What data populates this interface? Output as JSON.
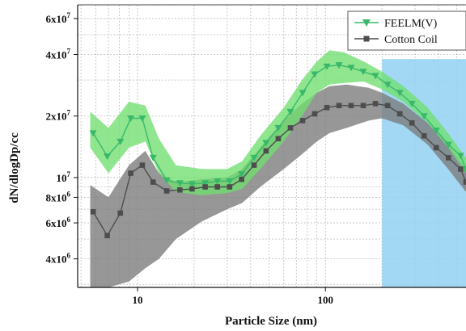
{
  "chart_data": {
    "type": "line",
    "xlabel": "Particle Size (nm)",
    "ylabel": "dN/dlogDp/cc",
    "xscale": "log",
    "yscale": "log",
    "xlim": [
      4.8,
      560
    ],
    "ylim": [
      2900000,
      70000000
    ],
    "x_ticks": [
      {
        "value": 10,
        "label": "10"
      },
      {
        "value": 100,
        "label": "100"
      }
    ],
    "y_ticks": [
      {
        "value": 4000000,
        "mantissa": "4x10",
        "exp": "6"
      },
      {
        "value": 6000000,
        "mantissa": "6x10",
        "exp": "6"
      },
      {
        "value": 8000000,
        "mantissa": "8x10",
        "exp": "6"
      },
      {
        "value": 10000000,
        "mantissa": "10",
        "exp": "7"
      },
      {
        "value": 20000000,
        "mantissa": "2x10",
        "exp": "7"
      },
      {
        "value": 40000000,
        "mantissa": "4x10",
        "exp": "7"
      },
      {
        "value": 60000000,
        "mantissa": "6x10",
        "exp": "7"
      }
    ],
    "grid": true,
    "legend_position": "top-right",
    "highlight_region": {
      "x_start": 200,
      "x_end": 560,
      "y_top": 38000000,
      "color": "#93d1f3"
    },
    "series": [
      {
        "name": "FEELM(V)",
        "color": "#39b86a",
        "band_color": "#6fdf6f",
        "marker": "triangle-down",
        "points": [
          {
            "x": 5.8,
            "y": 16500000
          },
          {
            "x": 6.9,
            "y": 12700000
          },
          {
            "x": 8.1,
            "y": 15000000
          },
          {
            "x": 9.2,
            "y": 19500000
          },
          {
            "x": 10.6,
            "y": 19500000
          },
          {
            "x": 12.1,
            "y": 12500000
          },
          {
            "x": 14.3,
            "y": 9700000
          },
          {
            "x": 16.8,
            "y": 9400000
          },
          {
            "x": 19.5,
            "y": 9300000
          },
          {
            "x": 22.9,
            "y": 9400000
          },
          {
            "x": 26.6,
            "y": 9600000
          },
          {
            "x": 30.9,
            "y": 9600000
          },
          {
            "x": 35.8,
            "y": 10400000
          },
          {
            "x": 41.7,
            "y": 12500000
          },
          {
            "x": 48.3,
            "y": 14800000
          },
          {
            "x": 56.1,
            "y": 17500000
          },
          {
            "x": 65.1,
            "y": 21000000
          },
          {
            "x": 75.6,
            "y": 26000000
          },
          {
            "x": 87.7,
            "y": 32000000
          },
          {
            "x": 101.8,
            "y": 35000000
          },
          {
            "x": 118.1,
            "y": 35500000
          },
          {
            "x": 137.0,
            "y": 34500000
          },
          {
            "x": 159.0,
            "y": 33000000
          },
          {
            "x": 184.6,
            "y": 31500000
          },
          {
            "x": 214.3,
            "y": 28500000
          },
          {
            "x": 248.8,
            "y": 26000000
          },
          {
            "x": 288.8,
            "y": 23000000
          },
          {
            "x": 335.2,
            "y": 20000000
          },
          {
            "x": 389.1,
            "y": 17000000
          },
          {
            "x": 451.6,
            "y": 14500000
          },
          {
            "x": 524.0,
            "y": 12800000
          },
          {
            "x": 560.0,
            "y": 11000000
          }
        ],
        "band_upper": [
          {
            "x": 5.6,
            "y": 21000000
          },
          {
            "x": 7.0,
            "y": 17500000
          },
          {
            "x": 9.0,
            "y": 23500000
          },
          {
            "x": 11.0,
            "y": 22500000
          },
          {
            "x": 13.0,
            "y": 15500000
          },
          {
            "x": 16.0,
            "y": 11500000
          },
          {
            "x": 22.0,
            "y": 11000000
          },
          {
            "x": 30.0,
            "y": 11000000
          },
          {
            "x": 36.0,
            "y": 12000000
          },
          {
            "x": 45.0,
            "y": 16000000
          },
          {
            "x": 60.0,
            "y": 22000000
          },
          {
            "x": 75.0,
            "y": 30000000
          },
          {
            "x": 90.0,
            "y": 37000000
          },
          {
            "x": 105.0,
            "y": 42000000
          },
          {
            "x": 125.0,
            "y": 41000000
          },
          {
            "x": 160.0,
            "y": 37000000
          },
          {
            "x": 200.0,
            "y": 33000000
          },
          {
            "x": 260.0,
            "y": 28000000
          },
          {
            "x": 350.0,
            "y": 22000000
          },
          {
            "x": 450.0,
            "y": 16500000
          },
          {
            "x": 560.0,
            "y": 12500000
          }
        ],
        "band_lower": [
          {
            "x": 5.6,
            "y": 14000000
          },
          {
            "x": 7.0,
            "y": 10500000
          },
          {
            "x": 9.0,
            "y": 14000000
          },
          {
            "x": 11.0,
            "y": 15000000
          },
          {
            "x": 13.0,
            "y": 10500000
          },
          {
            "x": 16.0,
            "y": 8500000
          },
          {
            "x": 22.0,
            "y": 8200000
          },
          {
            "x": 30.0,
            "y": 8400000
          },
          {
            "x": 36.0,
            "y": 8800000
          },
          {
            "x": 45.0,
            "y": 11000000
          },
          {
            "x": 60.0,
            "y": 15000000
          },
          {
            "x": 75.0,
            "y": 20000000
          },
          {
            "x": 90.0,
            "y": 26000000
          },
          {
            "x": 105.0,
            "y": 28500000
          },
          {
            "x": 125.0,
            "y": 29000000
          },
          {
            "x": 160.0,
            "y": 29500000
          },
          {
            "x": 200.0,
            "y": 27000000
          },
          {
            "x": 260.0,
            "y": 23500000
          },
          {
            "x": 350.0,
            "y": 18500000
          },
          {
            "x": 450.0,
            "y": 14000000
          },
          {
            "x": 560.0,
            "y": 10500000
          }
        ]
      },
      {
        "name": "Cotton Coil",
        "color": "#4d4d4d",
        "band_color": "#7a7a7a",
        "marker": "square",
        "points": [
          {
            "x": 5.8,
            "y": 6800000
          },
          {
            "x": 6.9,
            "y": 5200000
          },
          {
            "x": 8.1,
            "y": 6700000
          },
          {
            "x": 9.2,
            "y": 10500000
          },
          {
            "x": 10.6,
            "y": 11500000
          },
          {
            "x": 12.1,
            "y": 9500000
          },
          {
            "x": 14.3,
            "y": 8600000
          },
          {
            "x": 16.8,
            "y": 8700000
          },
          {
            "x": 19.5,
            "y": 8800000
          },
          {
            "x": 22.9,
            "y": 9000000
          },
          {
            "x": 26.6,
            "y": 9000000
          },
          {
            "x": 30.9,
            "y": 9000000
          },
          {
            "x": 35.8,
            "y": 9800000
          },
          {
            "x": 41.7,
            "y": 11500000
          },
          {
            "x": 48.3,
            "y": 13500000
          },
          {
            "x": 56.1,
            "y": 15500000
          },
          {
            "x": 65.1,
            "y": 17500000
          },
          {
            "x": 75.6,
            "y": 19000000
          },
          {
            "x": 87.7,
            "y": 20500000
          },
          {
            "x": 101.8,
            "y": 22000000
          },
          {
            "x": 118.1,
            "y": 22500000
          },
          {
            "x": 137.0,
            "y": 22500000
          },
          {
            "x": 159.0,
            "y": 22500000
          },
          {
            "x": 184.6,
            "y": 23000000
          },
          {
            "x": 214.3,
            "y": 22500000
          },
          {
            "x": 248.8,
            "y": 20500000
          },
          {
            "x": 288.8,
            "y": 18500000
          },
          {
            "x": 335.2,
            "y": 16000000
          },
          {
            "x": 389.1,
            "y": 14000000
          },
          {
            "x": 451.6,
            "y": 12500000
          },
          {
            "x": 524.0,
            "y": 11000000
          },
          {
            "x": 560.0,
            "y": 9500000
          }
        ],
        "band_upper": [
          {
            "x": 5.6,
            "y": 9200000
          },
          {
            "x": 7.0,
            "y": 8000000
          },
          {
            "x": 9.0,
            "y": 11500000
          },
          {
            "x": 11.0,
            "y": 13500000
          },
          {
            "x": 13.0,
            "y": 10500000
          },
          {
            "x": 16.0,
            "y": 9500000
          },
          {
            "x": 22.0,
            "y": 9800000
          },
          {
            "x": 30.0,
            "y": 10000000
          },
          {
            "x": 36.0,
            "y": 11000000
          },
          {
            "x": 45.0,
            "y": 14000000
          },
          {
            "x": 60.0,
            "y": 19000000
          },
          {
            "x": 75.0,
            "y": 23000000
          },
          {
            "x": 90.0,
            "y": 26000000
          },
          {
            "x": 105.0,
            "y": 28000000
          },
          {
            "x": 130.0,
            "y": 28500000
          },
          {
            "x": 170.0,
            "y": 27500000
          },
          {
            "x": 200.0,
            "y": 26000000
          },
          {
            "x": 260.0,
            "y": 23000000
          },
          {
            "x": 350.0,
            "y": 18500000
          },
          {
            "x": 450.0,
            "y": 14500000
          },
          {
            "x": 560.0,
            "y": 11000000
          }
        ],
        "band_lower": [
          {
            "x": 5.6,
            "y": 2900000
          },
          {
            "x": 7.0,
            "y": 2900000
          },
          {
            "x": 9.0,
            "y": 3100000
          },
          {
            "x": 11.0,
            "y": 3600000
          },
          {
            "x": 13.0,
            "y": 4000000
          },
          {
            "x": 16.0,
            "y": 5000000
          },
          {
            "x": 22.0,
            "y": 6100000
          },
          {
            "x": 30.0,
            "y": 7000000
          },
          {
            "x": 36.0,
            "y": 7500000
          },
          {
            "x": 45.0,
            "y": 9000000
          },
          {
            "x": 60.0,
            "y": 11000000
          },
          {
            "x": 75.0,
            "y": 13000000
          },
          {
            "x": 90.0,
            "y": 15000000
          },
          {
            "x": 105.0,
            "y": 16500000
          },
          {
            "x": 130.0,
            "y": 17500000
          },
          {
            "x": 170.0,
            "y": 19000000
          },
          {
            "x": 200.0,
            "y": 19500000
          },
          {
            "x": 260.0,
            "y": 18000000
          },
          {
            "x": 350.0,
            "y": 14500000
          },
          {
            "x": 450.0,
            "y": 11000000
          },
          {
            "x": 560.0,
            "y": 8500000
          }
        ]
      }
    ]
  }
}
